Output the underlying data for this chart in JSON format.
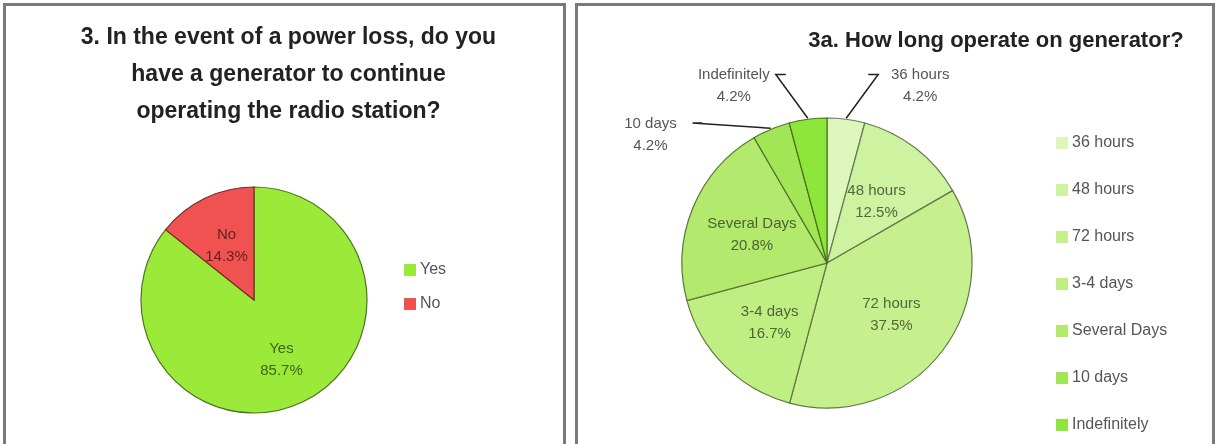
{
  "chart_data": [
    {
      "type": "pie",
      "title": "3. In the event of a power loss, do you have a generator to continue operating the radio station?",
      "categories": [
        "Yes",
        "No"
      ],
      "values": [
        85.7,
        14.3
      ],
      "value_labels": [
        "85.7%",
        "14.3%"
      ],
      "colors": [
        "#9bea3a",
        "#f05252"
      ],
      "legend": "right"
    },
    {
      "type": "pie",
      "title": "3a. How long operate on generator?",
      "categories": [
        "36 hours",
        "48 hours",
        "72 hours",
        "3-4 days",
        "Several Days",
        "10 days",
        "Indefinitely"
      ],
      "values": [
        4.2,
        12.5,
        37.5,
        16.7,
        20.8,
        4.2,
        4.2
      ],
      "value_labels": [
        "4.2%",
        "12.5%",
        "37.5%",
        "16.7%",
        "20.8%",
        "4.2%",
        "4.2%"
      ],
      "colors": [
        "#dcf6bc",
        "#cdf2a0",
        "#c6f08e",
        "#bfee82",
        "#b3ea6e",
        "#a2e656",
        "#8fe63a"
      ],
      "legend": "right"
    }
  ]
}
